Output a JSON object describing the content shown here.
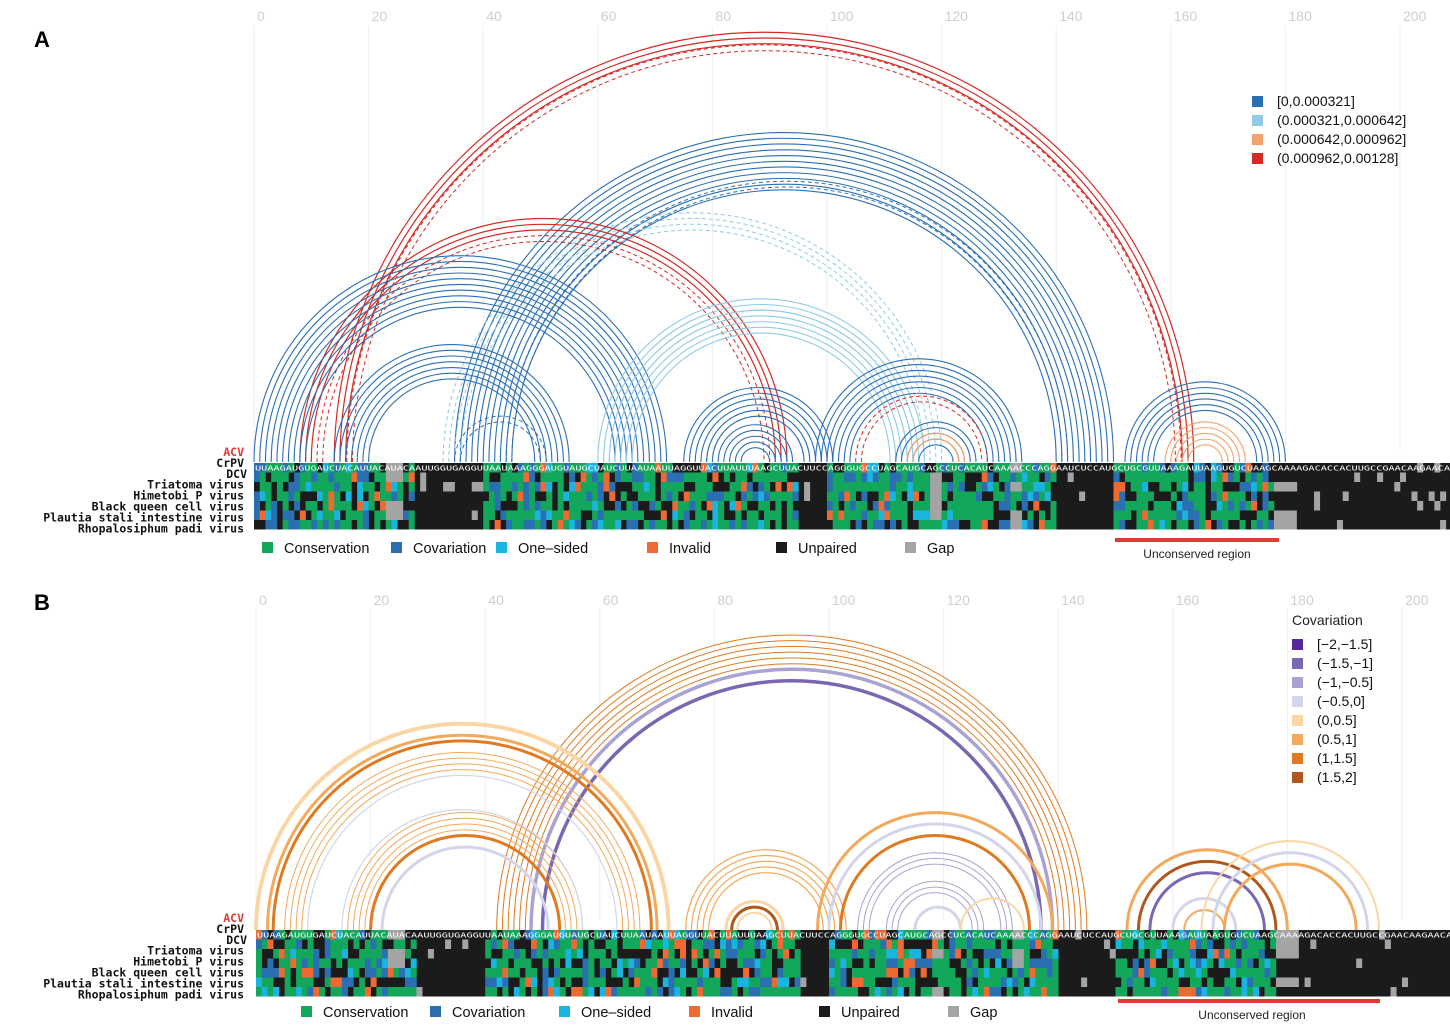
{
  "colors": {
    "conservation": "#12a75b",
    "covariation": "#2b6fb3",
    "one_sided": "#19b5df",
    "invalid": "#ee6a32",
    "unpaired": "#1b1b1b",
    "gap": "#a4a4a4",
    "highlight_red": "#e03a34",
    "gridline": "#eeeeee",
    "tick_text": "#cfcfcf"
  },
  "species": [
    "ACV",
    "CrPV",
    "DCV",
    "Triatoma virus",
    "Himetobi P virus",
    "Black queen cell virus",
    "Plautia stali intestine virus",
    "Rhopalosiphum padi virus"
  ],
  "axis_ticks": [
    "0",
    "20",
    "40",
    "60",
    "80",
    "100",
    "120",
    "140",
    "160",
    "180",
    "200"
  ],
  "status_legend": [
    {
      "label": "Conservation",
      "color": "#12a75b"
    },
    {
      "label": "Covariation",
      "color": "#2b6fb3"
    },
    {
      "label": "One–sided",
      "color": "#19b5df"
    },
    {
      "label": "Invalid",
      "color": "#ee6a32"
    },
    {
      "label": "Unpaired",
      "color": "#1b1b1b"
    },
    {
      "label": "Gap",
      "color": "#a4a4a4"
    }
  ],
  "panel_a": {
    "label": "A",
    "region_label": "Unconserved region",
    "legend": [
      {
        "label": "[0,0.000321]",
        "color": "#2b6fb3"
      },
      {
        "label": "(0.000321,0.000642]",
        "color": "#8fcbe6"
      },
      {
        "label": "(0.000642,0.000962]",
        "color": "#f4a26b"
      },
      {
        "label": "(0.000962,0.00128]",
        "color": "#d32a25"
      }
    ],
    "sequence": "UUAAGAUGUGAUCUACAUUACAUACAAUUGGUGAGGUUAAUAAAGGGAUGUAUGCUAUCUUAAUAAUUAGGUUACUUAUUUAAGCUUACUUCCAGGGUGCCUAGCAUGCAGCCUCACAUCAAAACCCAGGAAUCUCCAUGCUGCGUUAAAGAUUAAGUGUCUAAGCAAAAGACACCACUUGCCGAACAAGAACAU"
  },
  "panel_b": {
    "label": "B",
    "legend_title": "Covariation",
    "region_label": "Unconserved region",
    "legend": [
      {
        "label": "[−2,−1.5]",
        "color": "#54289b"
      },
      {
        "label": "(−1.5,−1]",
        "color": "#7a67b3"
      },
      {
        "label": "(−1,−0.5]",
        "color": "#a9a2d3"
      },
      {
        "label": "(−0.5,0]",
        "color": "#d3d5ea"
      },
      {
        "label": "(0,0.5]",
        "color": "#fbd6a4"
      },
      {
        "label": "(0.5,1]",
        "color": "#f3a95b"
      },
      {
        "label": "(1,1.5]",
        "color": "#df7a22"
      },
      {
        "label": "(1.5,2]",
        "color": "#b0571d"
      }
    ]
  }
}
